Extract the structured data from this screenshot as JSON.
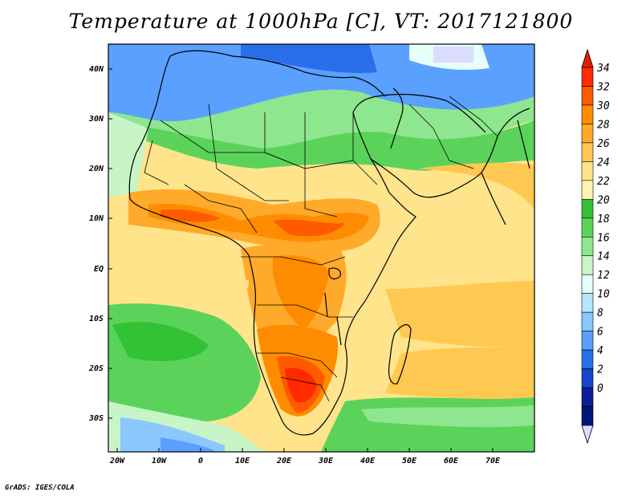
{
  "title": "Temperature at 1000hPa [C], VT: 2017121800",
  "credit": "GrADS: IGES/COLA",
  "map": {
    "region": "Africa, Middle East, western Indian Ocean",
    "lat_labels": [
      "40N",
      "30N",
      "20N",
      "10N",
      "EQ",
      "10S",
      "20S",
      "30S"
    ],
    "lon_labels": [
      "20W",
      "10W",
      "0",
      "10E",
      "20E",
      "30E",
      "40E",
      "50E",
      "60E",
      "70E"
    ]
  },
  "colorbar": {
    "labels": [
      "34",
      "32",
      "30",
      "28",
      "26",
      "24",
      "22",
      "20",
      "18",
      "16",
      "14",
      "12",
      "10",
      "8",
      "6",
      "4",
      "2",
      "0"
    ],
    "colors": [
      "#ff2a00",
      "#ff5a00",
      "#ff8c00",
      "#ffaa2a",
      "#ffc850",
      "#ffe48c",
      "#fff3b4",
      "#33c233",
      "#5bd35b",
      "#8ee68e",
      "#c8f5c8",
      "#e6fffa",
      "#b4e6ff",
      "#8ac8ff",
      "#5aa0ff",
      "#2a6eea",
      "#1446c8",
      "#0a1e96",
      "#00147a"
    ],
    "over_color": "#e61e00",
    "under_color": "#dcdcff"
  }
}
